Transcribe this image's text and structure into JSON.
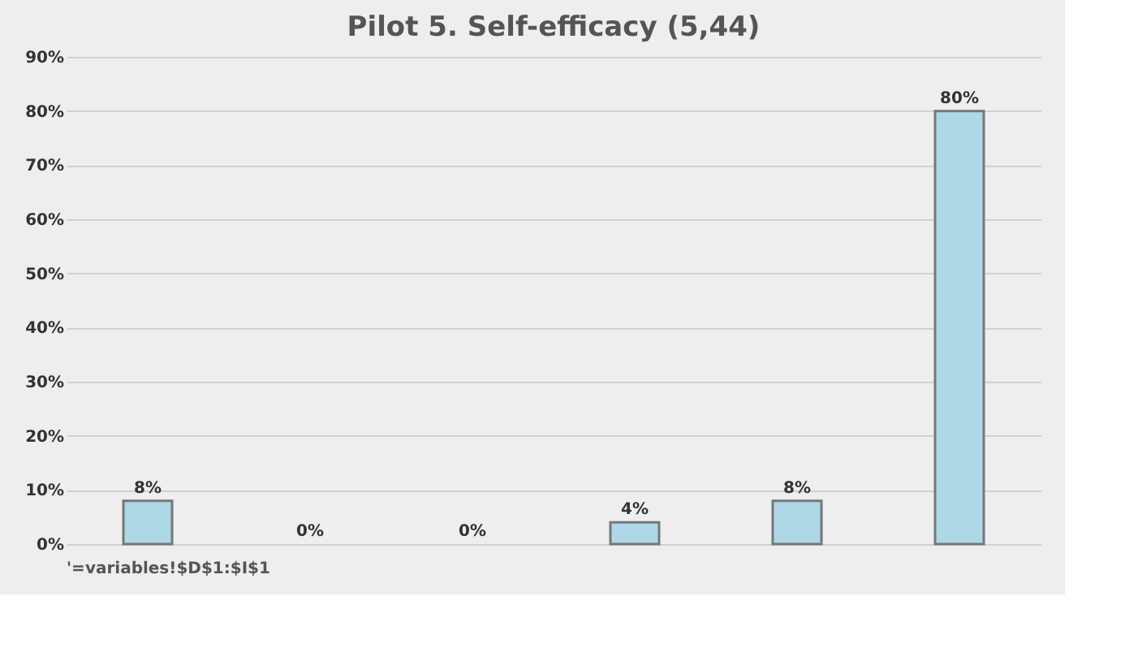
{
  "chart_data": {
    "type": "bar",
    "title": "Pilot 5. Self-efficacy (5,44)",
    "categories": [
      null,
      null,
      null,
      null,
      null,
      null
    ],
    "values": [
      8,
      0,
      0,
      4,
      8,
      80
    ],
    "value_labels": [
      "8%",
      "0%",
      "0%",
      "4%",
      "8%",
      "80%"
    ],
    "color": "#add8e6",
    "ylim": [
      0,
      90
    ],
    "yticks": [
      {
        "value": 0,
        "label": "0%"
      },
      {
        "value": 10,
        "label": "10%"
      },
      {
        "value": 20,
        "label": "20%"
      },
      {
        "value": 30,
        "label": "30%"
      },
      {
        "value": 40,
        "label": "40%"
      },
      {
        "value": 50,
        "label": "50%"
      },
      {
        "value": 60,
        "label": "60%"
      },
      {
        "value": 70,
        "label": "70%"
      },
      {
        "value": 80,
        "label": "80%"
      },
      {
        "value": 90,
        "label": "90%"
      }
    ],
    "grid": "y",
    "annotations": [
      "'=variables!$D$1:$I$1"
    ]
  }
}
